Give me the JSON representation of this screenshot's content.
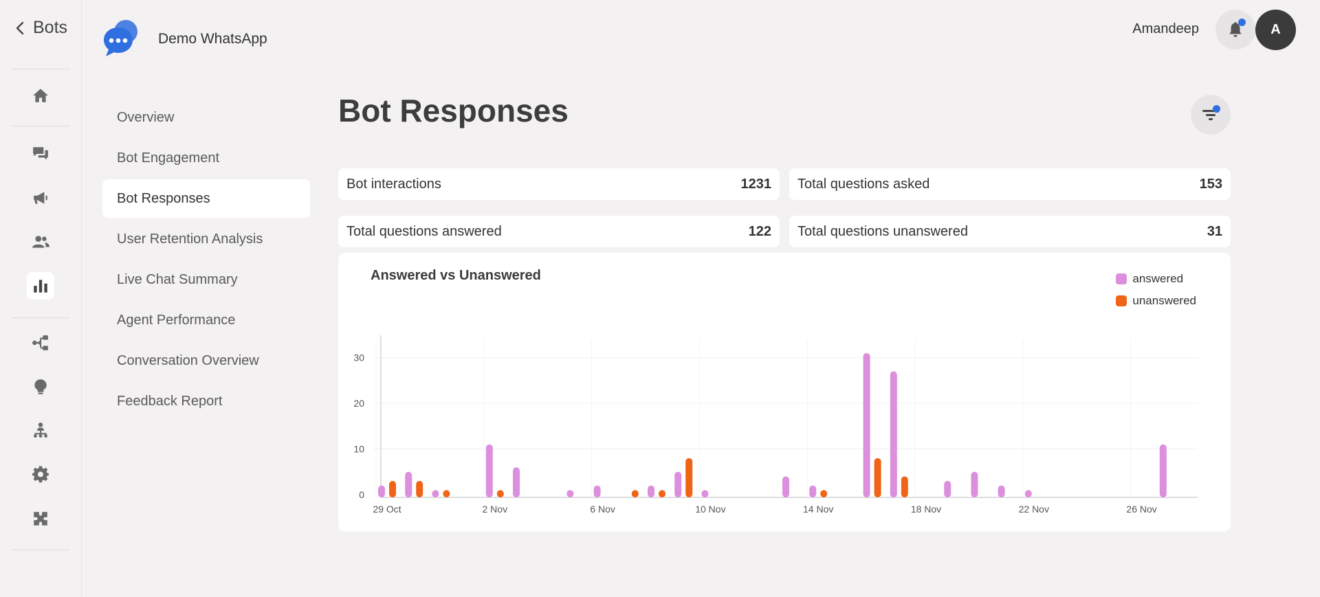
{
  "nav": {
    "back_label": "Bots",
    "rail_icons": [
      "home-icon",
      "chat-icon",
      "megaphone-icon",
      "users-icon",
      "bar-chart-icon",
      "flow-icon",
      "bulb-icon",
      "hierarchy-icon",
      "gear-icon",
      "puzzle-icon"
    ],
    "active_icon": "bar-chart-icon"
  },
  "brand": {
    "name": "Demo WhatsApp",
    "logo_color": "#2f6fe0"
  },
  "header": {
    "user_name": "Amandeep",
    "avatar_initial": "A",
    "notification_dot_color": "#2f6fe0"
  },
  "submenu": {
    "items": [
      {
        "label": "Overview",
        "active": false
      },
      {
        "label": "Bot Engagement",
        "active": false
      },
      {
        "label": "Bot Responses",
        "active": true
      },
      {
        "label": "User Retention Analysis",
        "active": false
      },
      {
        "label": "Live Chat Summary",
        "active": false
      },
      {
        "label": "Agent Performance",
        "active": false
      },
      {
        "label": "Conversation Overview",
        "active": false
      },
      {
        "label": "Feedback Report",
        "active": false
      }
    ]
  },
  "page": {
    "title": "Bot Responses"
  },
  "stats": [
    {
      "label": "Bot interactions",
      "value": "1231"
    },
    {
      "label": "Total questions asked",
      "value": "153"
    },
    {
      "label": "Total questions answered",
      "value": "122"
    },
    {
      "label": "Total questions unanswered",
      "value": "31"
    }
  ],
  "chart_data": {
    "type": "bar",
    "title": "Answered vs Unanswered",
    "xlabel": "",
    "ylabel": "",
    "ylim": [
      0,
      34
    ],
    "yticks": [
      0,
      10,
      20,
      30
    ],
    "grid": true,
    "legend_position": "top-right",
    "x_tick_labels": [
      "29 Oct",
      "2 Nov",
      "6 Nov",
      "10 Nov",
      "14 Nov",
      "18 Nov",
      "22 Nov",
      "26 Nov"
    ],
    "categories": [
      "29 Oct",
      "30 Oct",
      "31 Oct",
      "1 Nov",
      "2 Nov",
      "3 Nov",
      "4 Nov",
      "5 Nov",
      "6 Nov",
      "7 Nov",
      "8 Nov",
      "9 Nov",
      "10 Nov",
      "11 Nov",
      "12 Nov",
      "13 Nov",
      "14 Nov",
      "15 Nov",
      "16 Nov",
      "17 Nov",
      "18 Nov",
      "19 Nov",
      "20 Nov",
      "21 Nov",
      "22 Nov",
      "23 Nov",
      "24 Nov",
      "25 Nov",
      "26 Nov",
      "27 Nov"
    ],
    "series": [
      {
        "name": "answered",
        "color": "#dc8fdc",
        "values": [
          2,
          5,
          1,
          0,
          11,
          6,
          0,
          1,
          2,
          0,
          2,
          5,
          1,
          0,
          0,
          4,
          2,
          0,
          31,
          27,
          0,
          3,
          5,
          2,
          1,
          0,
          0,
          0,
          0,
          11
        ]
      },
      {
        "name": "unanswered",
        "color": "#f06418",
        "values": [
          3,
          3,
          1,
          0,
          1,
          0,
          0,
          0,
          0,
          1,
          1,
          8,
          0,
          0,
          0,
          0,
          1,
          0,
          8,
          4,
          0,
          0,
          0,
          0,
          0,
          0,
          0,
          0,
          0,
          0
        ]
      }
    ]
  }
}
